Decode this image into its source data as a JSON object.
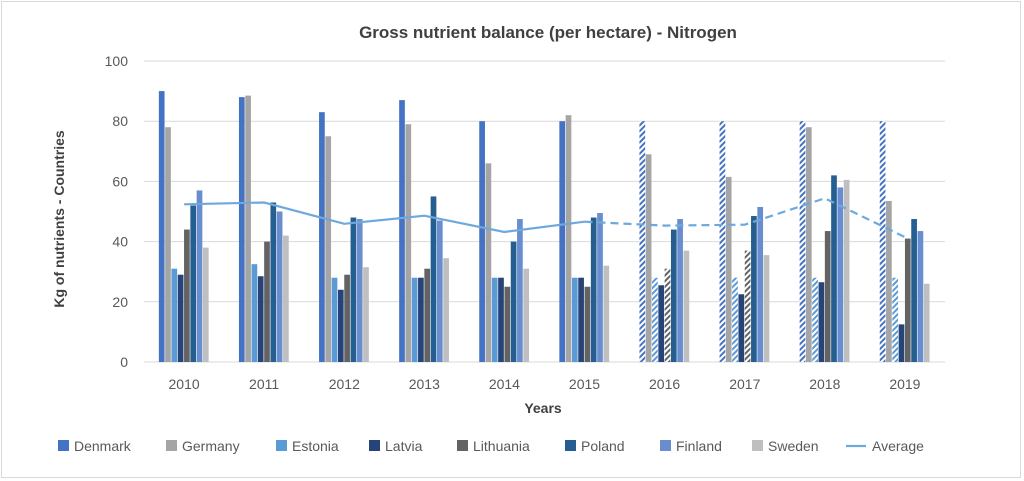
{
  "chart_data": {
    "type": "bar",
    "title": "Gross nutrient balance (per hectare) - Nitrogen",
    "xlabel": "Years",
    "ylabel": "Kg of nutrients - Countries",
    "ylim": [
      0,
      100
    ],
    "yticks": [
      "0",
      "20",
      "40",
      "60",
      "80",
      "100"
    ],
    "grid": true,
    "legend_position": "bottom",
    "categories": [
      "2010",
      "2011",
      "2012",
      "2013",
      "2014",
      "2015",
      "2016",
      "2017",
      "2018",
      "2019"
    ],
    "series": [
      {
        "name": "Denmark",
        "color": "#4472c4",
        "values": [
          90,
          88,
          83,
          87,
          80,
          80,
          80,
          80,
          80,
          80
        ],
        "estimated_from": 6
      },
      {
        "name": "Germany",
        "color": "#a5a5a5",
        "values": [
          78,
          88.5,
          75,
          79,
          66,
          82,
          69,
          61.5,
          78,
          53.5
        ]
      },
      {
        "name": "Estonia",
        "color": "#5b9bd5",
        "values": [
          31,
          32.5,
          28,
          28,
          28,
          28,
          28,
          28,
          28,
          28
        ],
        "estimated_from": 6
      },
      {
        "name": "Latvia",
        "color": "#264478",
        "values": [
          29,
          28.5,
          24,
          28,
          28,
          28,
          25.5,
          22.5,
          26.5,
          12.5
        ]
      },
      {
        "name": "Lithuania",
        "color": "#636363",
        "values": [
          44,
          40,
          29,
          31,
          25,
          25,
          31,
          37,
          43.5,
          41
        ],
        "estimated_from": 6,
        "estimated_to": 7
      },
      {
        "name": "Poland",
        "color": "#255e91",
        "values": [
          52,
          53,
          48,
          55,
          40,
          48,
          44,
          48.5,
          62,
          47.5
        ]
      },
      {
        "name": "Finland",
        "color": "#698ed0",
        "values": [
          57,
          50,
          47.5,
          47,
          47.5,
          49.5,
          47.5,
          51.5,
          58,
          43.5
        ]
      },
      {
        "name": "Sweden",
        "color": "#bfbfbf",
        "values": [
          38,
          42,
          31.5,
          34.5,
          31,
          32,
          37,
          35.5,
          60.5,
          26
        ]
      }
    ],
    "average": {
      "name": "Average",
      "color": "#6fa8dc",
      "values": [
        52.4,
        53,
        45.9,
        48.6,
        43.2,
        46.6,
        45.3,
        45.6,
        54.4,
        41.5
      ],
      "dashed_from": 5
    }
  }
}
